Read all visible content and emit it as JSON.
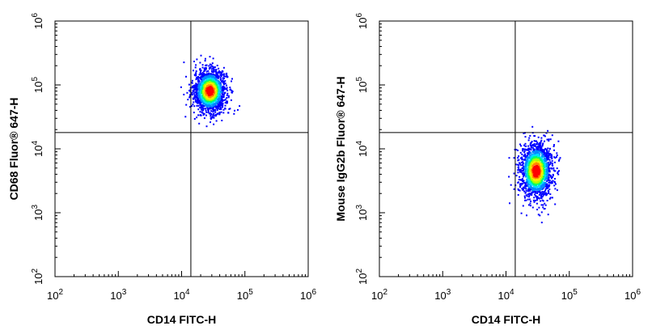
{
  "chart_data": [
    {
      "type": "scatter",
      "subtype": "flow-cytometry-density-dot-plot",
      "xlabel": "CD14 FITC-H",
      "ylabel": "CD68 Fluor® 647-H",
      "x_scale": "log",
      "y_scale": "log",
      "xlim": [
        100,
        1000000
      ],
      "ylim": [
        100,
        1000000
      ],
      "x_ticks": [
        {
          "base": "10",
          "exp": "2"
        },
        {
          "base": "10",
          "exp": "3"
        },
        {
          "base": "10",
          "exp": "4"
        },
        {
          "base": "10",
          "exp": "5"
        },
        {
          "base": "10",
          "exp": "6"
        }
      ],
      "y_ticks": [
        {
          "base": "10",
          "exp": "2"
        },
        {
          "base": "10",
          "exp": "3"
        },
        {
          "base": "10",
          "exp": "4"
        },
        {
          "base": "10",
          "exp": "5"
        },
        {
          "base": "10",
          "exp": "6"
        }
      ],
      "quadrant_gate": {
        "x": 14000,
        "y": 18000
      },
      "population": {
        "center_x": 28000,
        "center_y": 80000,
        "x_spread_decades": 0.13,
        "y_spread_decades": 0.17,
        "events": 1600
      },
      "grid": false
    },
    {
      "type": "scatter",
      "subtype": "flow-cytometry-density-dot-plot",
      "xlabel": "CD14 FITC-H",
      "ylabel": "Mouse IgG2b Fluor® 647-H",
      "x_scale": "log",
      "y_scale": "log",
      "xlim": [
        100,
        1000000
      ],
      "ylim": [
        100,
        1000000
      ],
      "x_ticks": [
        {
          "base": "10",
          "exp": "2"
        },
        {
          "base": "10",
          "exp": "3"
        },
        {
          "base": "10",
          "exp": "4"
        },
        {
          "base": "10",
          "exp": "5"
        },
        {
          "base": "10",
          "exp": "6"
        }
      ],
      "y_ticks": [
        {
          "base": "10",
          "exp": "2"
        },
        {
          "base": "10",
          "exp": "3"
        },
        {
          "base": "10",
          "exp": "4"
        },
        {
          "base": "10",
          "exp": "5"
        },
        {
          "base": "10",
          "exp": "6"
        }
      ],
      "quadrant_gate": {
        "x": 14000,
        "y": 18000
      },
      "population": {
        "center_x": 30000,
        "center_y": 4500,
        "x_spread_decades": 0.13,
        "y_spread_decades": 0.22,
        "events": 1600
      },
      "grid": false
    }
  ],
  "colors": {
    "density_scale": [
      "#0000ff",
      "#0088ff",
      "#00ddff",
      "#00ff66",
      "#aaff00",
      "#ffee00",
      "#ff8800",
      "#ff0000"
    ],
    "axes": "#000000",
    "gate_lines": "#000000"
  }
}
